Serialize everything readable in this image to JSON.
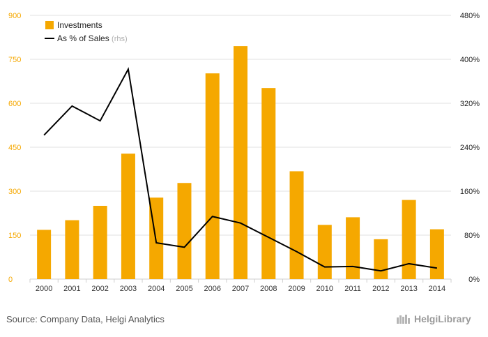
{
  "chart_data": {
    "type": "bar",
    "categories": [
      "2000",
      "2001",
      "2002",
      "2003",
      "2004",
      "2005",
      "2006",
      "2007",
      "2008",
      "2009",
      "2010",
      "2011",
      "2012",
      "2013",
      "2014"
    ],
    "series": [
      {
        "name": "Investments",
        "type": "bar",
        "axis": "left",
        "values": [
          168,
          201,
          250,
          428,
          278,
          328,
          702,
          795,
          652,
          368,
          185,
          211,
          136,
          270,
          170
        ]
      },
      {
        "name": "As % of Sales",
        "name_suffix": "(rhs)",
        "type": "line",
        "axis": "right",
        "values": [
          262,
          315,
          288,
          382,
          66,
          58,
          114,
          102,
          76,
          50,
          22,
          23,
          15,
          28,
          20
        ]
      }
    ],
    "left_axis": {
      "min": 0,
      "max": 900,
      "ticks": [
        "0",
        "150",
        "300",
        "450",
        "600",
        "750",
        "900"
      ],
      "tick_values": [
        0,
        150,
        300,
        450,
        600,
        750,
        900
      ]
    },
    "right_axis": {
      "min": 0,
      "max": 480,
      "ticks": [
        "0%",
        "80%",
        "160%",
        "240%",
        "320%",
        "400%",
        "480%"
      ],
      "tick_values": [
        0,
        80,
        160,
        240,
        320,
        400,
        480
      ]
    },
    "legend_position": "top-left",
    "grid": true
  },
  "colors": {
    "bar": "#f5a800",
    "line": "#000000",
    "grid": "#e2e2e2",
    "left_tick": "#f5a800"
  },
  "footer": {
    "source": "Source: Company Data, Helgi Analytics",
    "logo_text": "HelgiLibrary"
  }
}
